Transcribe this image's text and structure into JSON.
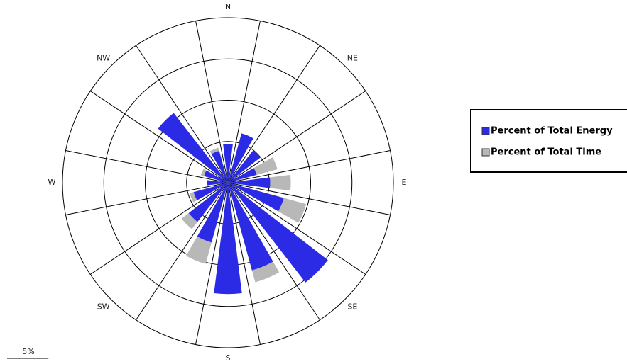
{
  "chart_data": {
    "type": "windrose",
    "categories": [
      "N",
      null,
      "NE",
      null,
      "E",
      null,
      "SE",
      null,
      "S",
      null,
      "SW",
      null,
      "W",
      null,
      "NW",
      null
    ],
    "series": [
      {
        "name": "Percent of Total Time",
        "color": "#b8b8b8",
        "values": [
          3.7,
          4.5,
          4.0,
          6.2,
          7.6,
          9.8,
          13.0,
          12.5,
          10.0,
          10.2,
          7.1,
          4.8,
          2.0,
          3.4,
          8.3,
          4.4
        ]
      },
      {
        "name": "Percent of Total Energy",
        "color": "#2b2be6",
        "values": [
          4.7,
          6.2,
          5.0,
          3.6,
          5.1,
          7.0,
          15.3,
          11.0,
          13.5,
          7.5,
          6.0,
          4.3,
          2.5,
          3.0,
          10.7,
          4.0
        ]
      }
    ],
    "ylim": [
      0,
      20
    ],
    "yticks": [
      5,
      10,
      15,
      20
    ],
    "grid": true,
    "scale_bar": {
      "value": 5,
      "label": "5%"
    }
  }
}
